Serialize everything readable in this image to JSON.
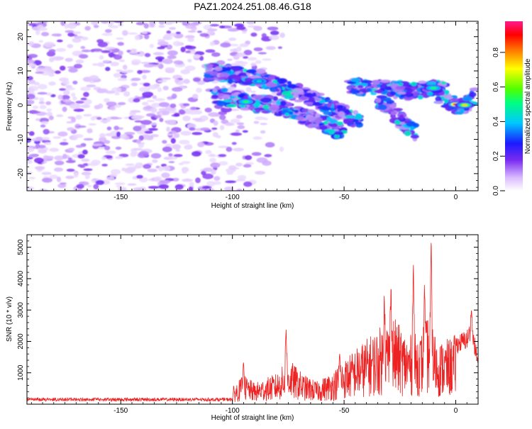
{
  "title": "PAZ1.2024.251.08.46.G18",
  "chart_data": [
    {
      "type": "heatmap",
      "xlabel": "Height of straight line (km)",
      "ylabel": "Frequency (Hz)",
      "xlim": [
        -192,
        10
      ],
      "ylim": [
        -25,
        24.5
      ],
      "xticks": [
        -150,
        -100,
        -50,
        0
      ],
      "yticks": [
        -20,
        -10,
        0,
        10,
        20
      ],
      "colorbar": {
        "label": "Normalized spectral amplitude",
        "range": [
          0,
          0.98
        ],
        "ticks": [
          "0.0",
          "0.2",
          "0.4",
          "0.6",
          "0.8"
        ],
        "colormap": "rainbow-to-white (white, violet, blue, cyan, green, yellow, red, magenta)"
      },
      "ridges": [
        {
          "name": "upper",
          "points": [
            [
              -112,
              10
            ],
            [
              -100,
              9
            ],
            [
              -88,
              8
            ],
            [
              -78,
              5
            ],
            [
              -68,
              3
            ],
            [
              -58,
              0
            ],
            [
              -48,
              -3
            ],
            [
              -42,
              -5
            ]
          ]
        },
        {
          "name": "lower",
          "points": [
            [
              -108,
              3
            ],
            [
              -95,
              1
            ],
            [
              -82,
              0
            ],
            [
              -72,
              -2
            ],
            [
              -60,
              -5
            ],
            [
              -50,
              -8
            ]
          ]
        },
        {
          "name": "right-upper",
          "points": [
            [
              -48,
              6
            ],
            [
              -40,
              5
            ],
            [
              -30,
              5
            ],
            [
              -20,
              4
            ],
            [
              -10,
              5
            ],
            [
              -5,
              5
            ]
          ]
        },
        {
          "name": "right-lower",
          "points": [
            [
              -35,
              2
            ],
            [
              -28,
              -2
            ],
            [
              -22,
              -6
            ],
            [
              -18,
              -8
            ]
          ]
        },
        {
          "name": "direct",
          "points": [
            [
              -8,
              3
            ],
            [
              -3,
              1
            ],
            [
              0,
              0
            ],
            [
              5,
              0
            ],
            [
              9,
              4
            ]
          ]
        }
      ],
      "peaks": [
        {
          "x": 0,
          "y": 0.2,
          "amplitude": 0.95
        },
        {
          "x": 4,
          "y": 0,
          "amplitude": 0.75
        },
        {
          "x": -94,
          "y": 1,
          "amplitude": 0.55
        },
        {
          "x": -10,
          "y": 5,
          "amplitude": 0.55
        },
        {
          "x": -88,
          "y": 7,
          "amplitude": 0.45
        }
      ],
      "noise_region": {
        "x_range": [
          -192,
          -100
        ],
        "y_range": [
          -25,
          24.5
        ],
        "amplitude": "0.05-0.3"
      }
    },
    {
      "type": "line",
      "xlabel": "Height of straight line (km)",
      "ylabel": "SNR (10 * v/v)",
      "xlim": [
        -192,
        10
      ],
      "ylim": [
        0,
        5400
      ],
      "xticks": [
        -150,
        -100,
        -50,
        0
      ],
      "yticks": [
        1000,
        2000,
        3000,
        4000,
        5000
      ],
      "color": "#ee2222",
      "envelope": [
        {
          "x": -192,
          "y": 180
        },
        {
          "x": -150,
          "y": 180
        },
        {
          "x": -115,
          "y": 190
        },
        {
          "x": -102,
          "y": 350
        },
        {
          "x": -95,
          "y": 900
        },
        {
          "x": -90,
          "y": 650
        },
        {
          "x": -80,
          "y": 950
        },
        {
          "x": -75,
          "y": 1400
        },
        {
          "x": -68,
          "y": 900
        },
        {
          "x": -62,
          "y": 700
        },
        {
          "x": -55,
          "y": 1000
        },
        {
          "x": -45,
          "y": 1700
        },
        {
          "x": -35,
          "y": 2300
        },
        {
          "x": -28,
          "y": 2700
        },
        {
          "x": -22,
          "y": 2100
        },
        {
          "x": -15,
          "y": 2200
        },
        {
          "x": -12,
          "y": 2800
        },
        {
          "x": -8,
          "y": 1900
        },
        {
          "x": -3,
          "y": 2000
        },
        {
          "x": 0,
          "y": 2150
        },
        {
          "x": 5,
          "y": 2350
        },
        {
          "x": 7,
          "y": 2700
        },
        {
          "x": 10,
          "y": 1500
        }
      ],
      "spikes": [
        {
          "x": -95,
          "y": 1400
        },
        {
          "x": -76,
          "y": 2500
        },
        {
          "x": -52,
          "y": 1650
        },
        {
          "x": -32,
          "y": 3600
        },
        {
          "x": -29,
          "y": 3900
        },
        {
          "x": -19,
          "y": 4700
        },
        {
          "x": -14,
          "y": 3900
        },
        {
          "x": -11,
          "y": 5400
        },
        {
          "x": 7,
          "y": 3050
        },
        {
          "x": 10,
          "y": 1150
        }
      ]
    }
  ]
}
